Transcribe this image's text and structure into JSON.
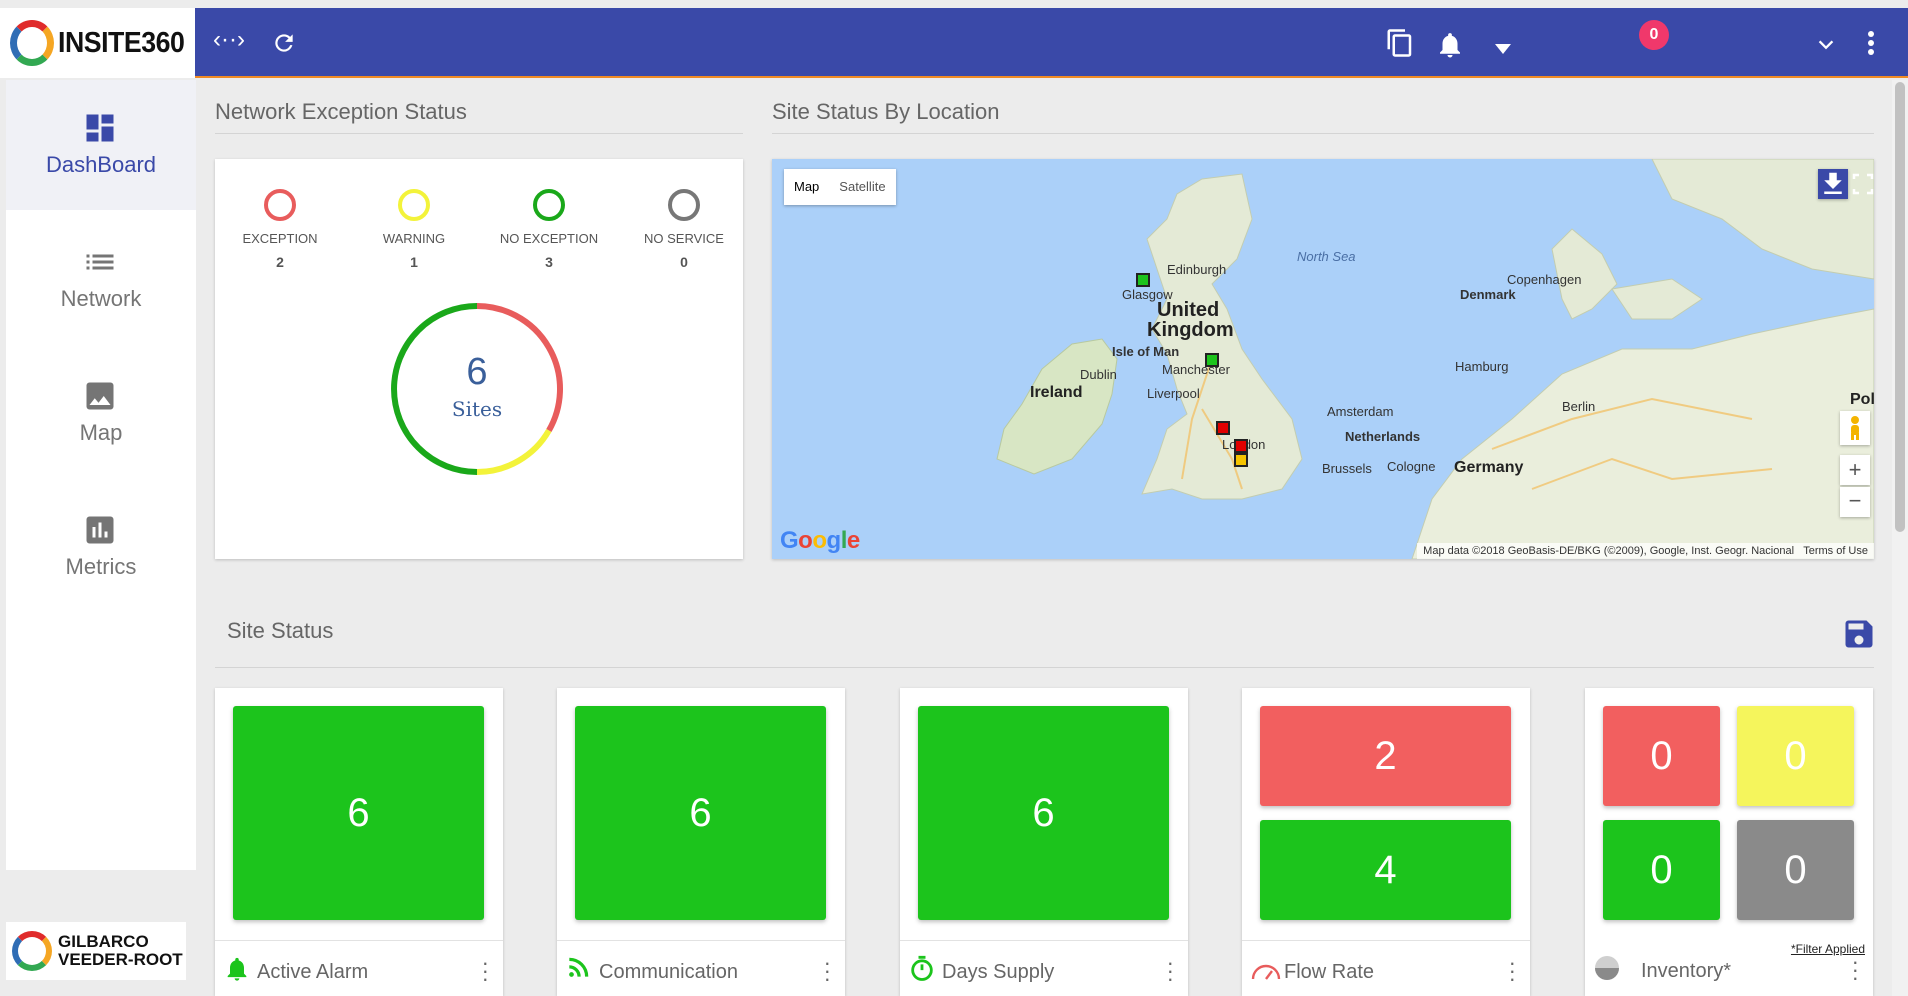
{
  "app": {
    "brand": "INSITE360",
    "footer_brand_line1": "GILBARCO",
    "footer_brand_line2": "VEEDER-ROOT"
  },
  "topbar": {
    "notification_count": "0",
    "icons": [
      "code-toggle-icon",
      "refresh-icon",
      "copy-icon",
      "bell-icon",
      "caret-down-icon",
      "chevron-down-icon",
      "more-vert-icon"
    ],
    "color": "#3a49a8",
    "accent": "#f08a24"
  },
  "sidebar": {
    "items": [
      {
        "label": "DashBoard",
        "icon": "dashboard-icon",
        "active": true
      },
      {
        "label": "Network",
        "icon": "list-icon",
        "active": false
      },
      {
        "label": "Map",
        "icon": "image-icon",
        "active": false
      },
      {
        "label": "Metrics",
        "icon": "bar-chart-icon",
        "active": false
      }
    ]
  },
  "network_exception": {
    "title": "Network Exception Status",
    "statuses": [
      {
        "label": "EXCEPTION",
        "count": "2",
        "color": "#e85c5c"
      },
      {
        "label": "WARNING",
        "count": "1",
        "color": "#f3f33a"
      },
      {
        "label": "NO EXCEPTION",
        "count": "3",
        "color": "#1aa81a"
      },
      {
        "label": "NO SERVICE",
        "count": "0",
        "color": "#777777"
      }
    ],
    "total": "6",
    "total_label": "Sites"
  },
  "site_location": {
    "title": "Site Status By Location",
    "map_type_buttons": [
      "Map",
      "Satellite"
    ],
    "places": {
      "north_sea": "North Sea",
      "edinburgh": "Edinburgh",
      "glasgow": "Glasgow",
      "uk1": "United",
      "uk2": "Kingdom",
      "isle": "Isle of Man",
      "dublin": "Dublin",
      "ireland": "Ireland",
      "manchester": "Manchester",
      "liverpool": "Liverpool",
      "london": "London",
      "copenhagen": "Copenhagen",
      "denmark": "Denmark",
      "hamburg": "Hamburg",
      "amsterdam": "Amsterdam",
      "netherlands": "Netherlands",
      "berlin": "Berlin",
      "brussels": "Brussels",
      "cologne": "Cologne",
      "germany": "Germany",
      "pol": "Pol"
    },
    "google": "Google",
    "attribution": "Map data ©2018 GeoBasis-DE/BKG (©2009), Google, Inst. Geogr. Nacional",
    "terms": "Terms of Use"
  },
  "site_status": {
    "title": "Site Status",
    "tiles": [
      {
        "label": "Active Alarm",
        "icon": "bell-icon",
        "values": [
          "6"
        ]
      },
      {
        "label": "Communication",
        "icon": "rss-icon",
        "values": [
          "6"
        ]
      },
      {
        "label": "Days Supply",
        "icon": "stopwatch-icon",
        "values": [
          "6"
        ]
      },
      {
        "label": "Flow Rate",
        "icon": "gauge-icon",
        "values": [
          "2",
          "4"
        ]
      },
      {
        "label": "Inventory*",
        "icon": "tank-icon",
        "values": [
          "0",
          "0",
          "0",
          "0"
        ],
        "note": "*Filter Applied"
      }
    ],
    "colors": {
      "green": "#1cc41c",
      "red": "#f25f5f",
      "yellow": "#f5f55c",
      "gray": "#8a8a8a"
    }
  }
}
